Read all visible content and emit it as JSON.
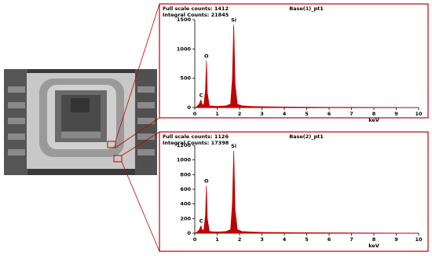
{
  "chart_data": [
    {
      "type": "line",
      "title": "Base(1)_pt1",
      "info": [
        "Full scale counts: 1412",
        "Integral Counts: 21845"
      ],
      "x_label": "keV",
      "x": [
        0,
        0.1,
        0.2,
        0.25,
        0.28,
        0.32,
        0.4,
        0.48,
        0.52,
        0.56,
        0.65,
        0.8,
        1.0,
        1.2,
        1.4,
        1.6,
        1.68,
        1.74,
        1.8,
        1.9,
        2.1,
        2.5,
        3,
        4,
        5,
        6,
        7,
        8,
        9,
        10
      ],
      "series": [
        {
          "color": "#c00000",
          "values": [
            0,
            20,
            60,
            110,
            130,
            60,
            40,
            300,
            800,
            250,
            30,
            25,
            20,
            25,
            30,
            60,
            500,
            1412,
            400,
            60,
            30,
            20,
            15,
            10,
            8,
            6,
            5,
            4,
            3,
            2
          ]
        }
      ],
      "annotations": [
        {
          "text": "C",
          "x": 0.28,
          "y": 130
        },
        {
          "text": "O",
          "x": 0.52,
          "y": 800
        },
        {
          "text": "Si",
          "x": 1.74,
          "y": 1412
        }
      ],
      "xlim": [
        0,
        10
      ],
      "xticks": [
        0,
        1,
        2,
        3,
        4,
        5,
        6,
        7,
        8,
        9,
        10
      ],
      "ylim": [
        0,
        1500
      ],
      "yticks": [
        0,
        500,
        1000,
        1500
      ]
    },
    {
      "type": "line",
      "title": "Base(2)_pt1",
      "info": [
        "Full scale counts: 1126",
        "Integral Counts: 17398"
      ],
      "x_label": "keV",
      "x": [
        0,
        0.1,
        0.2,
        0.25,
        0.28,
        0.32,
        0.4,
        0.48,
        0.52,
        0.56,
        0.65,
        0.8,
        1.0,
        1.2,
        1.4,
        1.6,
        1.68,
        1.74,
        1.8,
        1.9,
        2.1,
        2.5,
        3,
        4,
        5,
        6,
        7,
        8,
        9,
        10
      ],
      "series": [
        {
          "color": "#c00000",
          "values": [
            0,
            15,
            45,
            85,
            100,
            50,
            35,
            250,
            650,
            200,
            25,
            20,
            18,
            20,
            25,
            50,
            400,
            1126,
            320,
            50,
            25,
            18,
            12,
            9,
            7,
            5,
            4,
            3,
            2,
            2
          ]
        }
      ],
      "annotations": [
        {
          "text": "C",
          "x": 0.28,
          "y": 100
        },
        {
          "text": "O",
          "x": 0.52,
          "y": 650
        },
        {
          "text": "Si",
          "x": 1.74,
          "y": 1126
        }
      ],
      "xlim": [
        0,
        10
      ],
      "xticks": [
        0,
        1,
        2,
        3,
        4,
        5,
        6,
        7,
        8,
        9,
        10
      ],
      "ylim": [
        0,
        1200
      ],
      "yticks": [
        0,
        200,
        400,
        600,
        800,
        1000,
        1200
      ]
    }
  ]
}
